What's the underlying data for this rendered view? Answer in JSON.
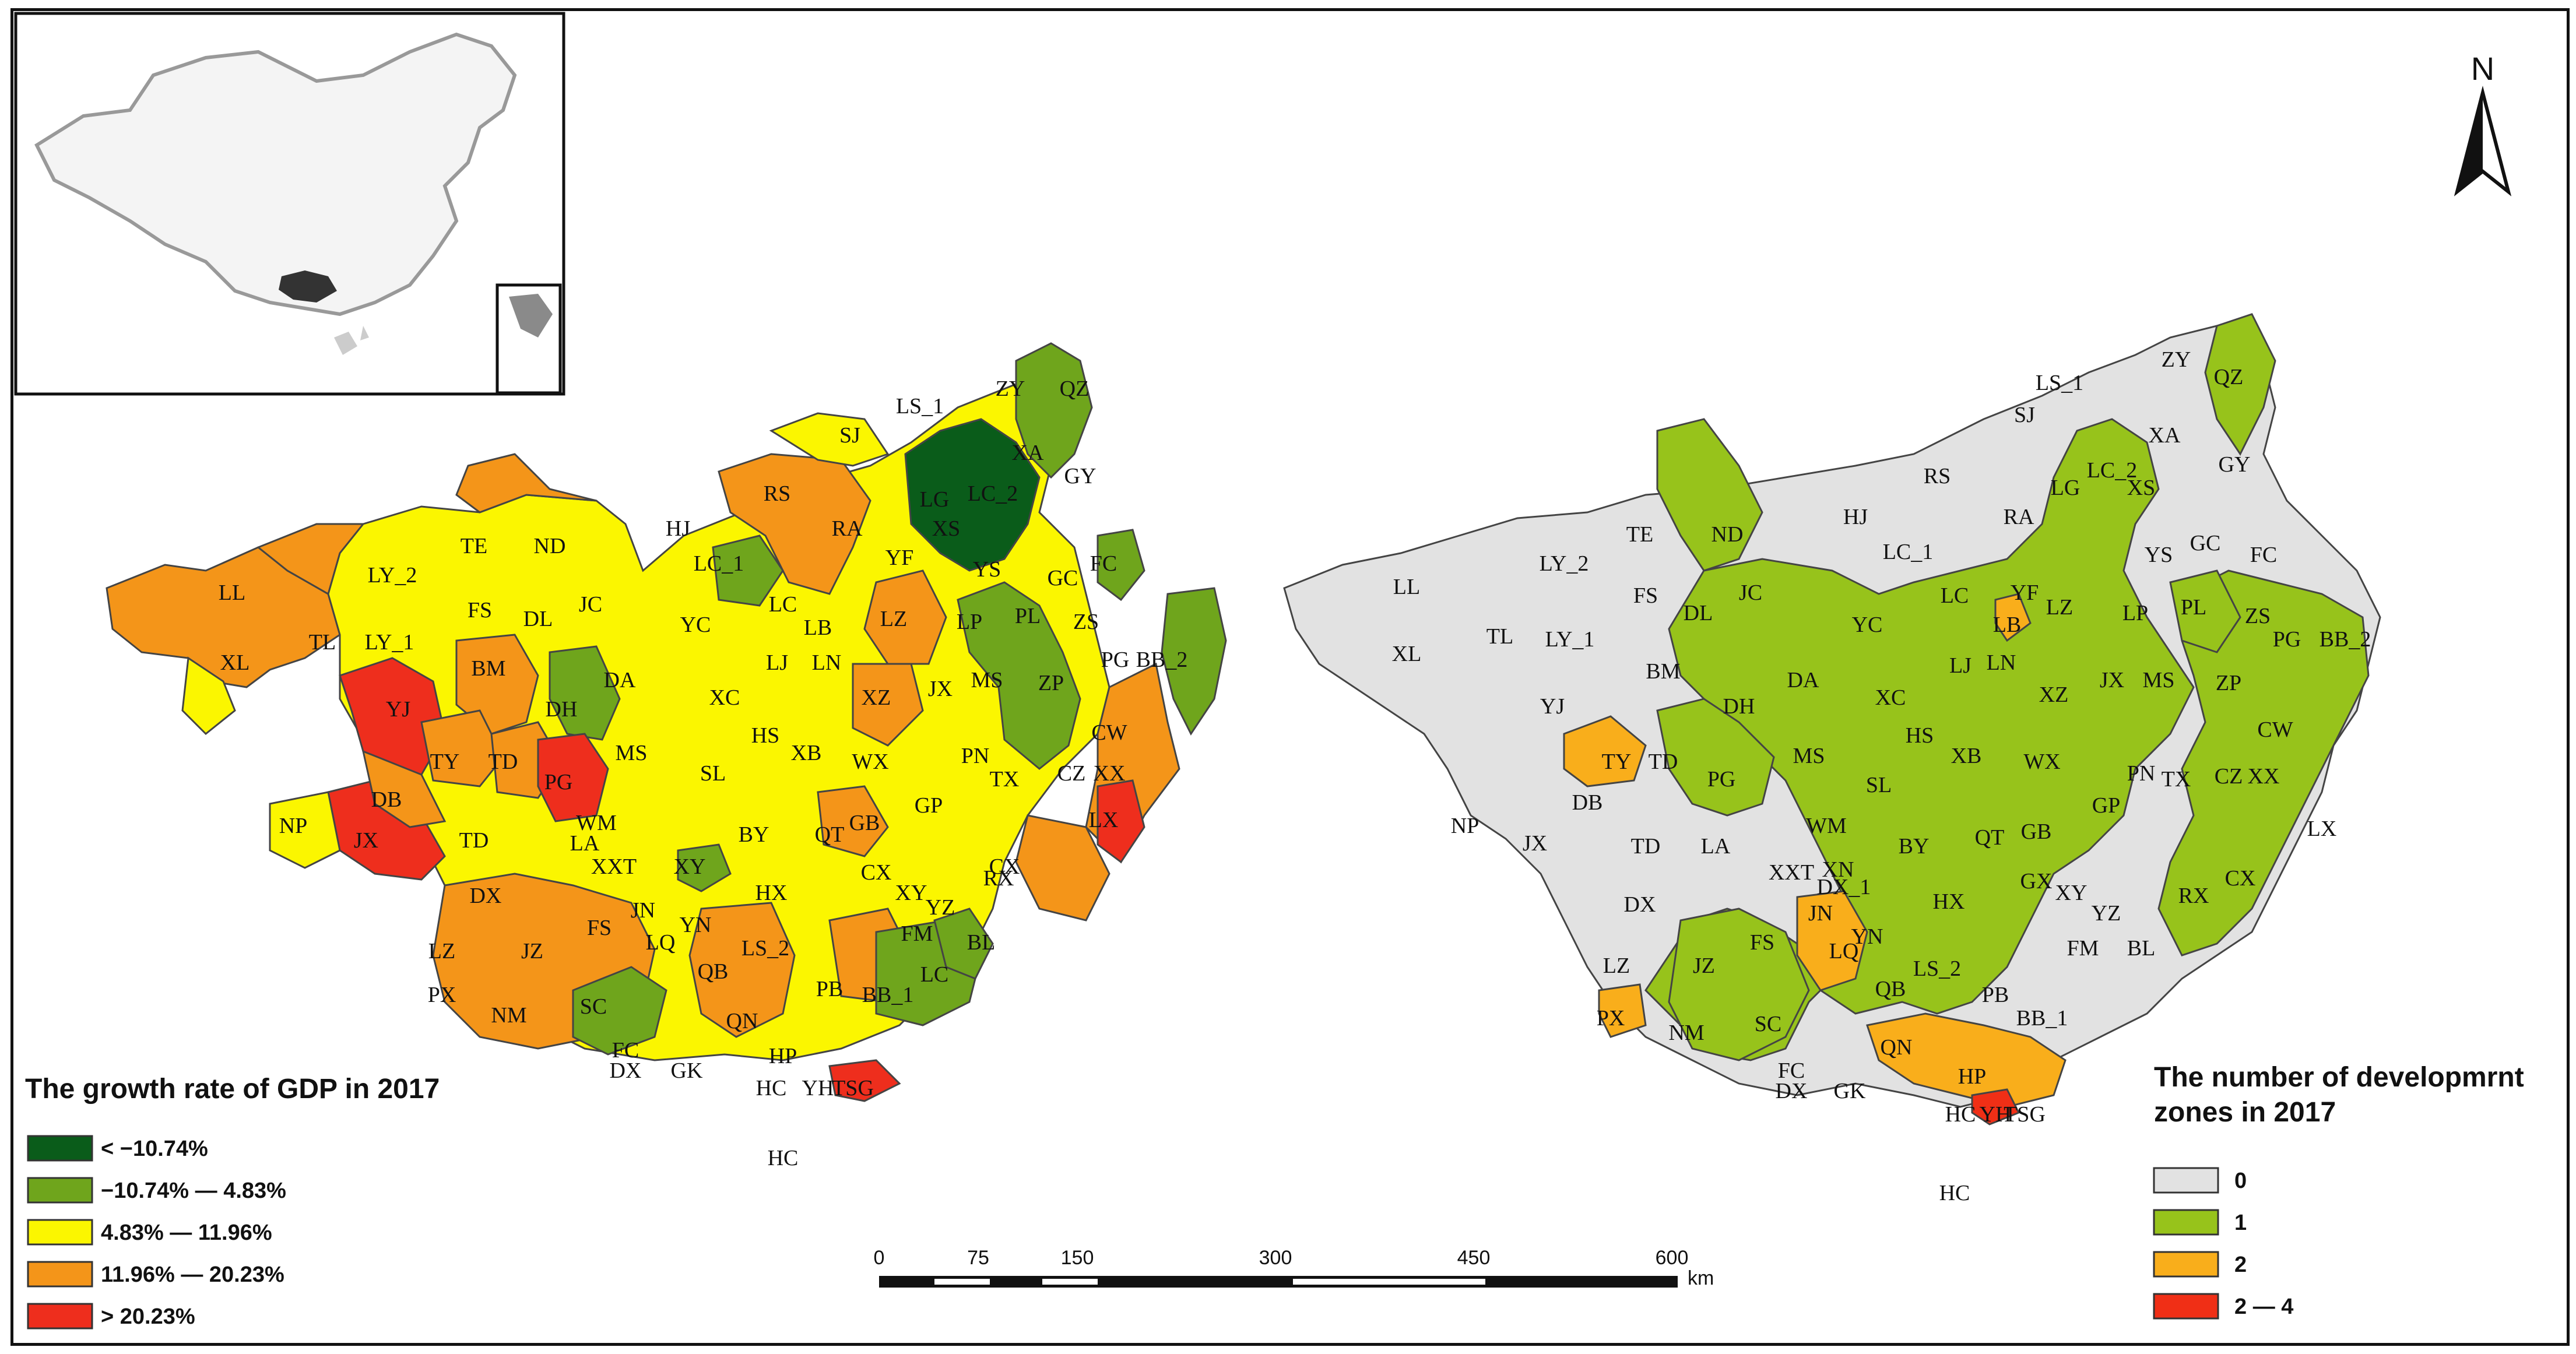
{
  "left_map": {
    "legend_title": "The growth rate of GDP in 2017",
    "legend": [
      {
        "label": "< −10.74%",
        "color": "#0a5c1a"
      },
      {
        "label": "−10.74% — 4.83%",
        "color": "#6fa51c"
      },
      {
        "label": "4.83% — 11.96%",
        "color": "#fbf600"
      },
      {
        "label": "11.96% — 20.23%",
        "color": "#f49519"
      },
      {
        "label": "> 20.23%",
        "color": "#ee2e1d"
      }
    ],
    "labels": [
      "LS_1",
      "ZY",
      "QZ",
      "SJ",
      "XA",
      "GY",
      "LG",
      "LC_2",
      "XS",
      "RS",
      "RA",
      "HJ",
      "TE",
      "ND",
      "LY_2",
      "LC_1",
      "YF",
      "YS",
      "GC",
      "FC",
      "LL",
      "FS",
      "DL",
      "JC",
      "YC",
      "LC",
      "LB",
      "LP",
      "PL",
      "ZS",
      "LY_1",
      "TL",
      "XL",
      "BM",
      "DA",
      "LJ",
      "LN",
      "LZ",
      "MS",
      "PG",
      "BB_2",
      "YJ",
      "DH",
      "XC",
      "HS",
      "XZ",
      "JX",
      "ZP",
      "CW",
      "TY",
      "TD",
      "MS",
      "XB",
      "PN",
      "PG",
      "SL",
      "WX",
      "TX",
      "CZ",
      "XX",
      "DB",
      "GP",
      "GB",
      "NP",
      "JX",
      "WM",
      "BY",
      "QT",
      "LX",
      "TD",
      "LA",
      "XXT",
      "XY",
      "CX",
      "DX",
      "JN",
      "HX",
      "CX",
      "XY",
      "YZ",
      "RX",
      "FS",
      "LQ",
      "YN",
      "FM",
      "BL",
      "LZ",
      "JZ",
      "LS_2",
      "LC",
      "QB",
      "PB",
      "BB_1",
      "PX",
      "SC",
      "NM",
      "QN",
      "FC",
      "HP",
      "DX",
      "GK",
      "HC",
      "YH",
      "TSG",
      "HC"
    ]
  },
  "right_map": {
    "legend_title_line1": "The number of developmrnt",
    "legend_title_line2": "zones in 2017",
    "legend": [
      {
        "label": "0",
        "color": "#e2e2e2"
      },
      {
        "label": "1",
        "color": "#97c31b"
      },
      {
        "label": "2",
        "color": "#f9ae1b"
      },
      {
        "label": "2 — 4",
        "color": "#f02f16"
      }
    ],
    "labels": [
      "LS_1",
      "ZY",
      "QZ",
      "SJ",
      "XA",
      "GY",
      "RS",
      "RA",
      "LG",
      "LC_2",
      "XS",
      "HJ",
      "TE",
      "ND",
      "LY_2",
      "LC_1",
      "YS",
      "GC",
      "FC",
      "LL",
      "FS",
      "DL",
      "JC",
      "YC",
      "LC",
      "LB",
      "YF",
      "LP",
      "PL",
      "ZS",
      "LY_1",
      "TL",
      "XL",
      "BM",
      "DA",
      "LJ",
      "LN",
      "LZ",
      "JX",
      "MS",
      "PG",
      "BB_2",
      "YJ",
      "DH",
      "XC",
      "HS",
      "XZ",
      "ZP",
      "CW",
      "TY",
      "TD",
      "PG",
      "MS",
      "XB",
      "WX",
      "PN",
      "TX",
      "CZ",
      "XX",
      "SL",
      "DB",
      "GP",
      "GB",
      "NP",
      "JX",
      "TD",
      "WM",
      "BY",
      "QT",
      "LX",
      "LA",
      "XXT",
      "XN",
      "DX",
      "DX_1",
      "HX",
      "GX",
      "XY",
      "YZ",
      "RX",
      "CX",
      "LZ",
      "JN",
      "LQ",
      "YN",
      "FM",
      "BL",
      "JZ",
      "FS",
      "LS_2",
      "QB",
      "PB",
      "BB_1",
      "PX",
      "NM",
      "SC",
      "QN",
      "FC",
      "DX",
      "GK",
      "HP",
      "TSG",
      "YH",
      "HC",
      "HC"
    ]
  },
  "scale_bar": {
    "ticks": [
      "0",
      "75",
      "150",
      "300",
      "450",
      "600"
    ],
    "unit": "km"
  },
  "north_arrow": {
    "label": "N",
    "icon": "north-arrow-icon"
  },
  "inset": {
    "icon": "china-locator-map-icon"
  }
}
